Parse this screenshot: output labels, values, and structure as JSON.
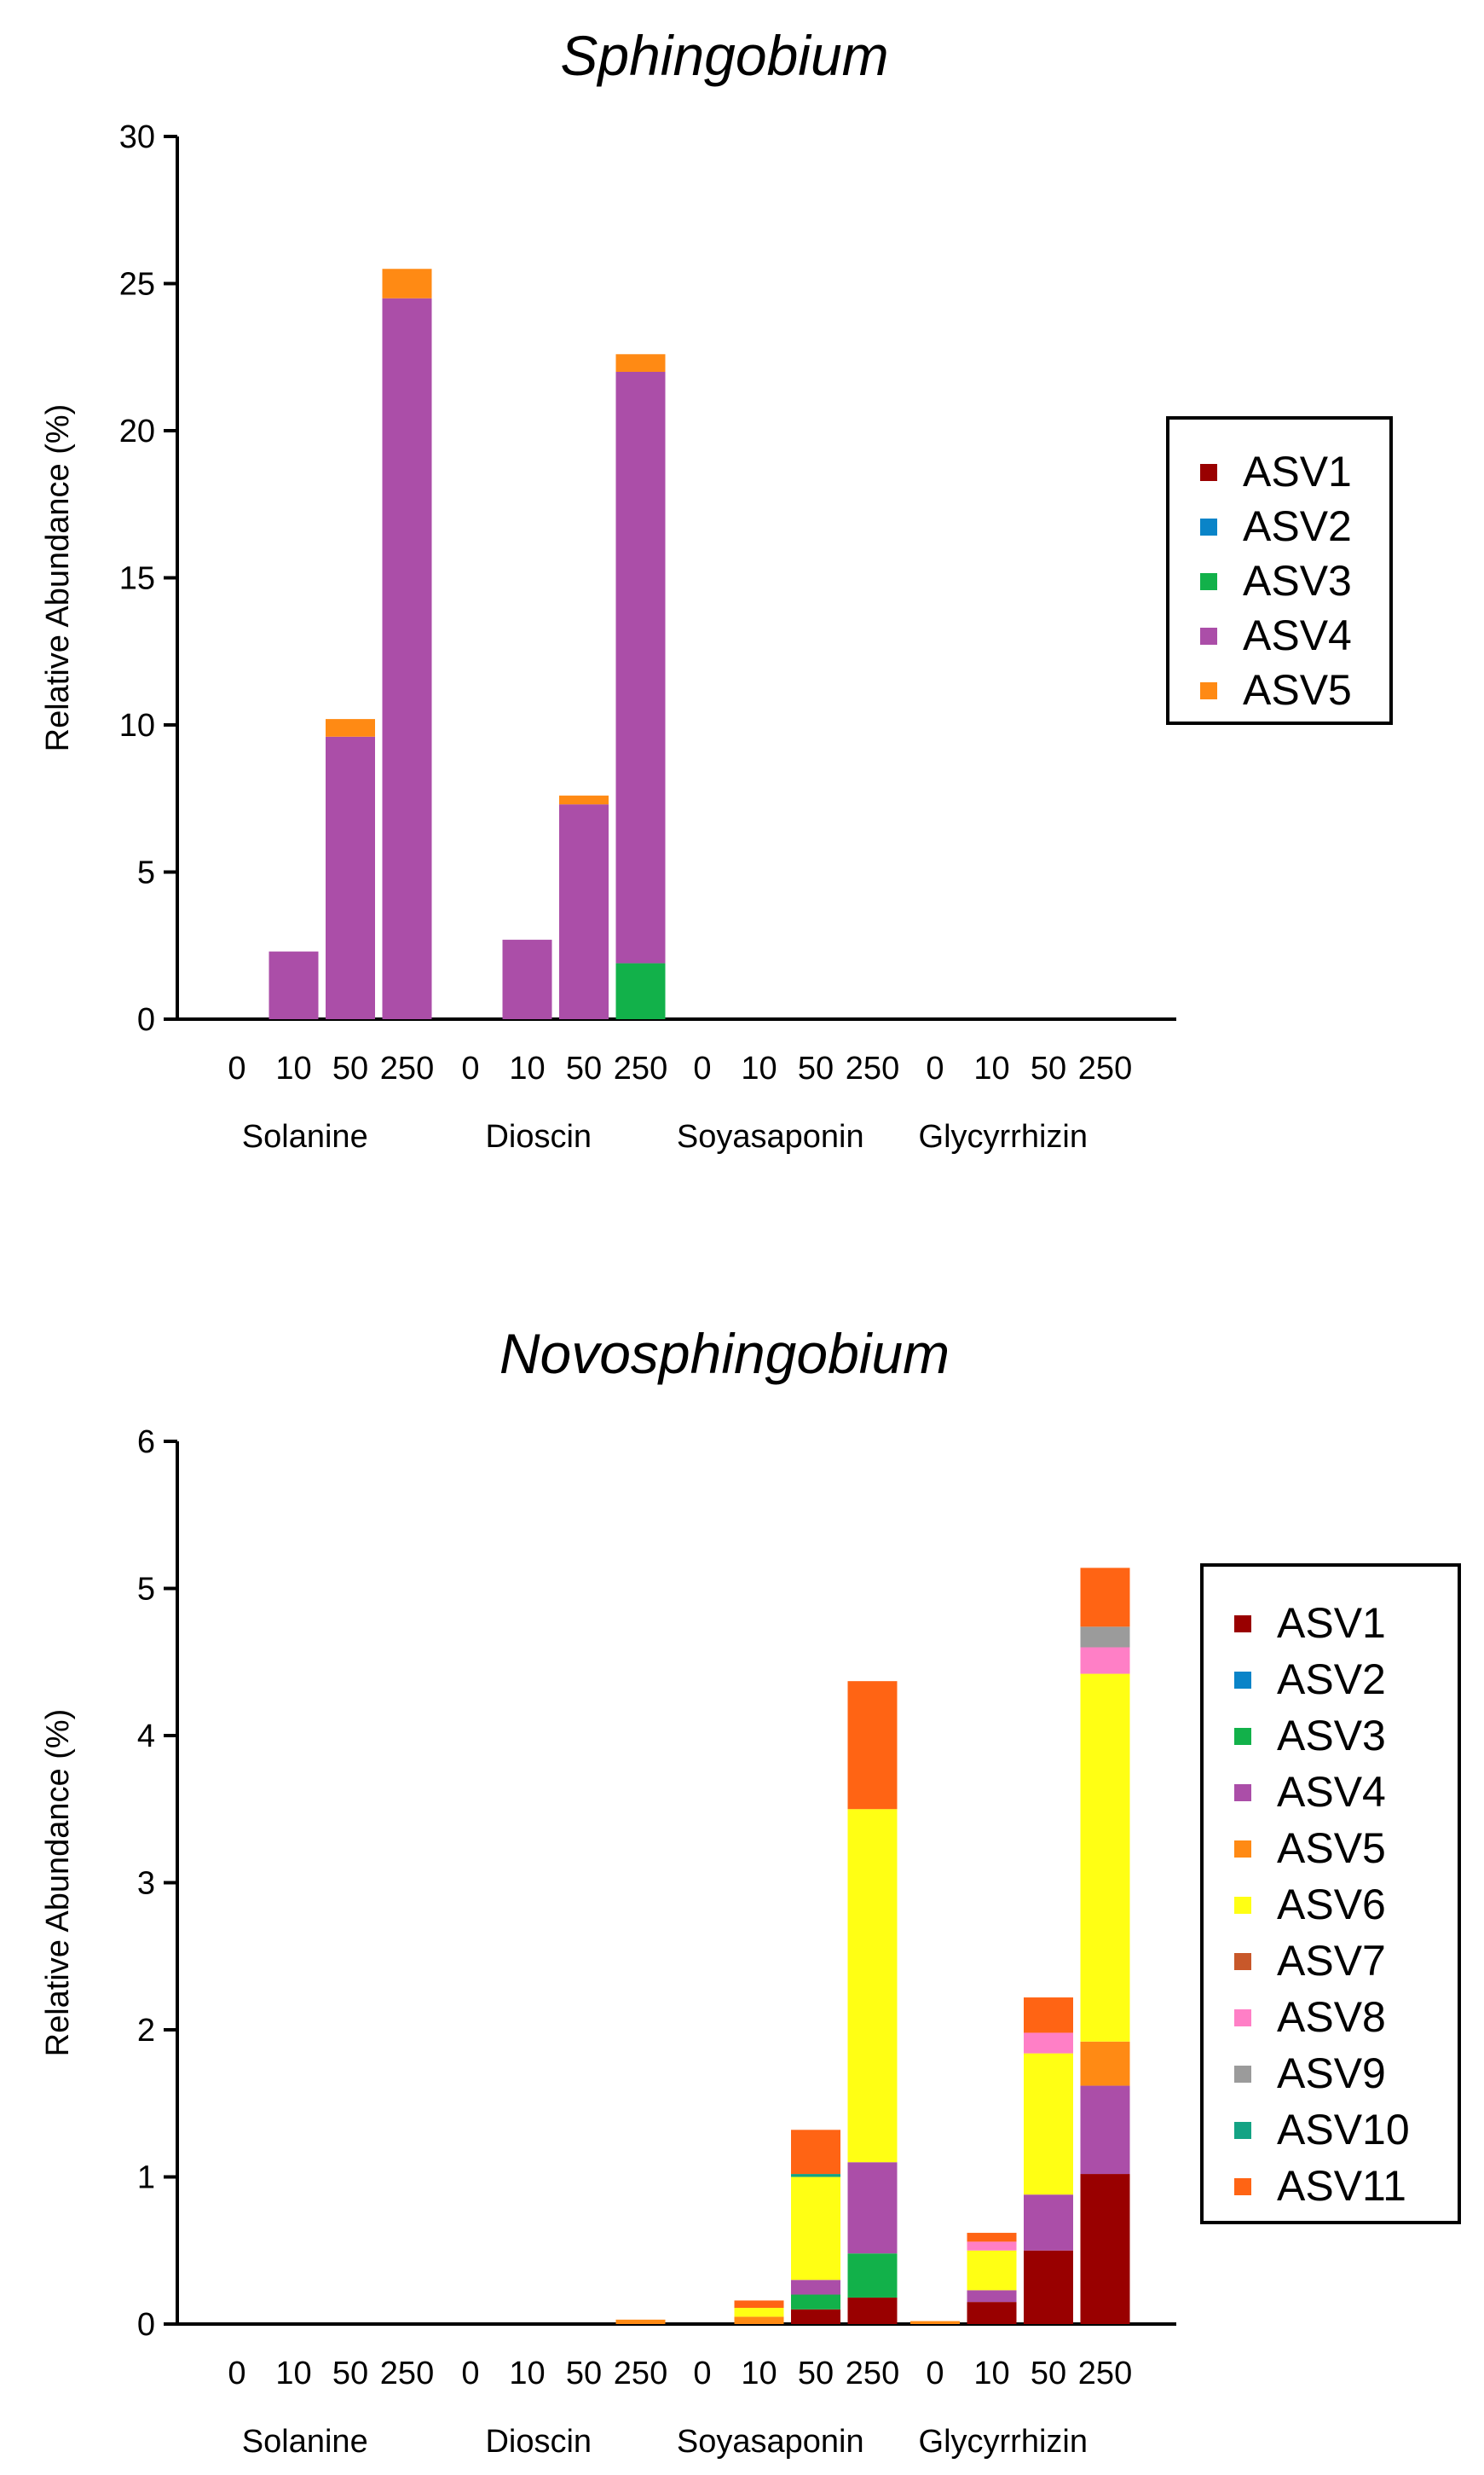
{
  "chart_data": [
    {
      "type": "bar",
      "stacked": true,
      "title": "Sphingobium",
      "ylabel": "Relative Abundance (%)",
      "xlabel": "",
      "ylim": [
        0,
        30
      ],
      "yticks": [
        0,
        5,
        10,
        15,
        20,
        25,
        30
      ],
      "groups": [
        "Solanine",
        "Dioscin",
        "Soyasaponin",
        "Glycyrrhizin"
      ],
      "categories": [
        "0",
        "10",
        "50",
        "250",
        "0",
        "10",
        "50",
        "250",
        "0",
        "10",
        "50",
        "250",
        "0",
        "10",
        "50",
        "250"
      ],
      "legend_position": "right",
      "series": [
        {
          "name": "ASV1",
          "color": "#990000",
          "values": [
            0,
            0,
            0,
            0,
            0,
            0,
            0,
            0,
            0,
            0,
            0,
            0,
            0,
            0,
            0,
            0
          ]
        },
        {
          "name": "ASV2",
          "color": "#0a84c8",
          "values": [
            0,
            0,
            0,
            0,
            0,
            0,
            0,
            0,
            0,
            0,
            0,
            0,
            0,
            0,
            0,
            0
          ]
        },
        {
          "name": "ASV3",
          "color": "#12b14a",
          "values": [
            0,
            0,
            0,
            0,
            0,
            0,
            0,
            1.9,
            0,
            0,
            0,
            0,
            0,
            0,
            0,
            0
          ]
        },
        {
          "name": "ASV4",
          "color": "#ab4ea8",
          "values": [
            0,
            2.3,
            9.6,
            24.5,
            0,
            2.7,
            7.3,
            20.1,
            0,
            0,
            0,
            0,
            0,
            0,
            0,
            0
          ]
        },
        {
          "name": "ASV5",
          "color": "#ff8a14",
          "values": [
            0,
            0,
            0.6,
            1.0,
            0,
            0,
            0.3,
            0.6,
            0,
            0,
            0,
            0,
            0,
            0,
            0,
            0
          ]
        }
      ]
    },
    {
      "type": "bar",
      "stacked": true,
      "title": "Novosphingobium",
      "ylabel": "Relative Abundance (%)",
      "xlabel": "",
      "ylim": [
        0,
        6
      ],
      "yticks": [
        0,
        1,
        2,
        3,
        4,
        5,
        6
      ],
      "groups": [
        "Solanine",
        "Dioscin",
        "Soyasaponin",
        "Glycyrrhizin"
      ],
      "categories": [
        "0",
        "10",
        "50",
        "250",
        "0",
        "10",
        "50",
        "250",
        "0",
        "10",
        "50",
        "250",
        "0",
        "10",
        "50",
        "250"
      ],
      "legend_position": "right",
      "series": [
        {
          "name": "ASV1",
          "color": "#990000",
          "values": [
            0,
            0,
            0,
            0,
            0,
            0,
            0,
            0,
            0,
            0,
            0.1,
            0.18,
            0,
            0.15,
            0.5,
            1.02
          ]
        },
        {
          "name": "ASV2",
          "color": "#0a84c8",
          "values": [
            0,
            0,
            0,
            0,
            0,
            0,
            0,
            0,
            0,
            0,
            0,
            0,
            0,
            0,
            0,
            0
          ]
        },
        {
          "name": "ASV3",
          "color": "#12b14a",
          "values": [
            0,
            0,
            0,
            0,
            0,
            0,
            0,
            0,
            0,
            0,
            0.1,
            0.3,
            0,
            0,
            0,
            0
          ]
        },
        {
          "name": "ASV4",
          "color": "#ab4ea8",
          "values": [
            0,
            0,
            0,
            0,
            0,
            0,
            0,
            0,
            0,
            0,
            0.1,
            0.62,
            0,
            0.08,
            0.38,
            0.6
          ]
        },
        {
          "name": "ASV5",
          "color": "#ff8a14",
          "values": [
            0,
            0,
            0,
            0,
            0,
            0,
            0,
            0.03,
            0,
            0.05,
            0,
            0,
            0.02,
            0,
            0,
            0.3
          ]
        },
        {
          "name": "ASV6",
          "color": "#ffff14",
          "values": [
            0,
            0,
            0,
            0,
            0,
            0,
            0,
            0,
            0,
            0.06,
            0.7,
            2.4,
            0,
            0.27,
            0.96,
            2.5
          ]
        },
        {
          "name": "ASV7",
          "color": "#c8582a",
          "values": [
            0,
            0,
            0,
            0,
            0,
            0,
            0,
            0,
            0,
            0,
            0,
            0,
            0,
            0,
            0,
            0
          ]
        },
        {
          "name": "ASV8",
          "color": "#ff7fc6",
          "values": [
            0,
            0,
            0,
            0,
            0,
            0,
            0,
            0,
            0,
            0,
            0,
            0,
            0,
            0.06,
            0.14,
            0.18
          ]
        },
        {
          "name": "ASV9",
          "color": "#9b9b9b",
          "values": [
            0,
            0,
            0,
            0,
            0,
            0,
            0,
            0,
            0,
            0,
            0,
            0,
            0,
            0,
            0,
            0.14
          ]
        },
        {
          "name": "ASV10",
          "color": "#14a384",
          "values": [
            0,
            0,
            0,
            0,
            0,
            0,
            0,
            0,
            0,
            0,
            0.02,
            0,
            0,
            0,
            0,
            0
          ]
        },
        {
          "name": "ASV11",
          "color": "#ff6414",
          "values": [
            0,
            0,
            0,
            0,
            0,
            0,
            0,
            0,
            0,
            0.05,
            0.3,
            0.87,
            0,
            0.06,
            0.24,
            0.4
          ]
        }
      ]
    }
  ]
}
